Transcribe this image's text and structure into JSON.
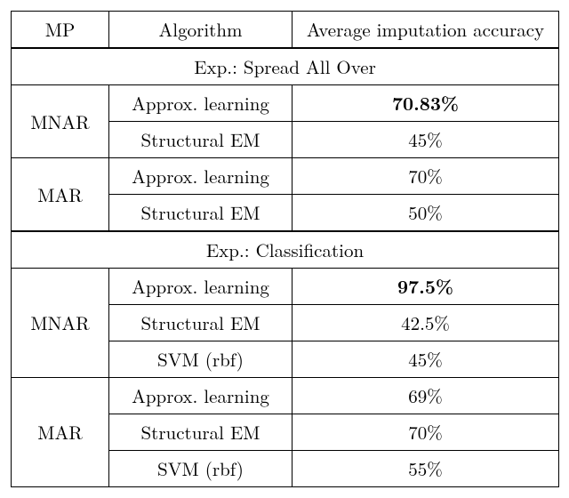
{
  "table": {
    "columns": [
      "MP",
      "Algorithm",
      "Average imputation accuracy"
    ],
    "section1": {
      "title": "Exp.: Spread All Over",
      "groups": [
        {
          "label": "MNAR",
          "rows": [
            {
              "alg": "Approx. learning",
              "acc": "70.83%",
              "bold": true
            },
            {
              "alg": "Structural EM",
              "acc": "45%",
              "bold": false
            }
          ]
        },
        {
          "label": "MAR",
          "rows": [
            {
              "alg": "Approx. learning",
              "acc": "70%",
              "bold": false
            },
            {
              "alg": "Structural EM",
              "acc": "50%",
              "bold": false
            }
          ]
        }
      ]
    },
    "section2": {
      "title": "Exp.: Classification",
      "groups": [
        {
          "label": "MNAR",
          "rows": [
            {
              "alg": "Approx. learning",
              "acc": "97.5%",
              "bold": true
            },
            {
              "alg": "Structural EM",
              "acc": "42.5%",
              "bold": false
            },
            {
              "alg": "SVM (rbf)",
              "acc": "45%",
              "bold": false
            }
          ]
        },
        {
          "label": "MAR",
          "rows": [
            {
              "alg": "Approx. learning",
              "acc": "69%",
              "bold": false
            },
            {
              "alg": "Structural EM",
              "acc": "70%",
              "bold": false
            },
            {
              "alg": "SVM (rbf)",
              "acc": "55%",
              "bold": false
            }
          ]
        }
      ]
    }
  }
}
